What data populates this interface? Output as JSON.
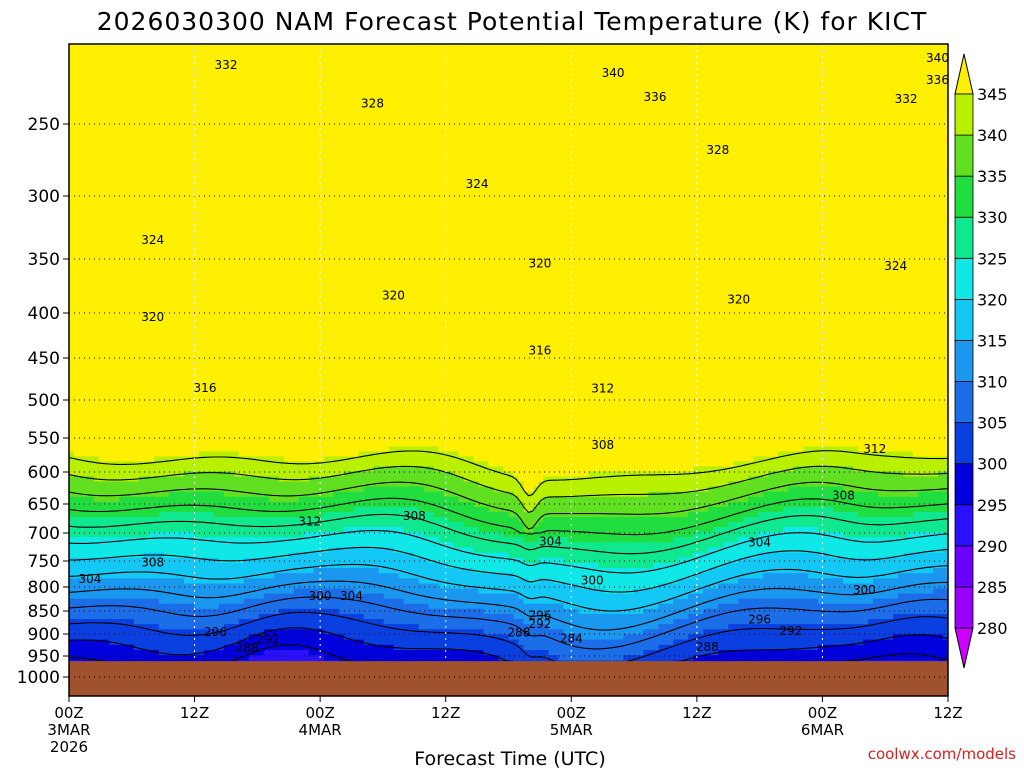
{
  "chart_data": {
    "type": "heatmap",
    "title": "2026030300 NAM Forecast Potential Temperature (K) for KICT",
    "xlabel": "Forecast Time (UTC)",
    "ylabel": "",
    "x_ticks": [
      {
        "hour": 0,
        "lines": [
          "00Z",
          "3MAR",
          "2026"
        ]
      },
      {
        "hour": 12,
        "lines": [
          "12Z"
        ]
      },
      {
        "hour": 24,
        "lines": [
          "00Z",
          "4MAR"
        ]
      },
      {
        "hour": 36,
        "lines": [
          "12Z"
        ]
      },
      {
        "hour": 48,
        "lines": [
          "00Z",
          "5MAR"
        ]
      },
      {
        "hour": 60,
        "lines": [
          "12Z"
        ]
      },
      {
        "hour": 72,
        "lines": [
          "00Z",
          "6MAR"
        ]
      },
      {
        "hour": 84,
        "lines": [
          "12Z"
        ]
      }
    ],
    "x_range_hours": [
      0,
      84
    ],
    "y_ticks_hpa": [
      250,
      300,
      350,
      400,
      450,
      500,
      550,
      600,
      650,
      700,
      750,
      800,
      850,
      900,
      950,
      1000
    ],
    "y_range_hpa": [
      200,
      1050
    ],
    "surface_pressure_hpa": 962,
    "colorbar": {
      "levels": [
        280,
        285,
        290,
        295,
        300,
        305,
        310,
        315,
        320,
        325,
        330,
        335,
        340,
        345
      ],
      "colors": [
        "#cc00ff",
        "#9900ff",
        "#6a00ff",
        "#2a10ff",
        "#0000dd",
        "#0a3fe0",
        "#1c6ee8",
        "#1a97ef",
        "#14c8f5",
        "#10e8e8",
        "#10e890",
        "#20dd40",
        "#60e020",
        "#b8f000",
        "#ffef00"
      ]
    },
    "contour_labels": [
      {
        "value": 340,
        "hour": 83,
        "hpa": 208
      },
      {
        "value": 340,
        "hour": 52,
        "hpa": 217
      },
      {
        "value": 336,
        "hour": 83,
        "hpa": 221
      },
      {
        "value": 336,
        "hour": 56,
        "hpa": 232
      },
      {
        "value": 332,
        "hour": 15,
        "hpa": 212
      },
      {
        "value": 332,
        "hour": 80,
        "hpa": 233
      },
      {
        "value": 328,
        "hour": 29,
        "hpa": 236
      },
      {
        "value": 328,
        "hour": 62,
        "hpa": 267
      },
      {
        "value": 324,
        "hour": 39,
        "hpa": 291
      },
      {
        "value": 324,
        "hour": 8,
        "hpa": 334
      },
      {
        "value": 324,
        "hour": 79,
        "hpa": 356
      },
      {
        "value": 320,
        "hour": 45,
        "hpa": 354
      },
      {
        "value": 320,
        "hour": 31,
        "hpa": 383
      },
      {
        "value": 320,
        "hour": 8,
        "hpa": 404
      },
      {
        "value": 320,
        "hour": 64,
        "hpa": 387
      },
      {
        "value": 316,
        "hour": 45,
        "hpa": 441
      },
      {
        "value": 316,
        "hour": 13,
        "hpa": 485
      },
      {
        "value": 312,
        "hour": 51,
        "hpa": 486
      },
      {
        "value": 312,
        "hour": 77,
        "hpa": 566
      },
      {
        "value": 312,
        "hour": 23,
        "hpa": 680
      },
      {
        "value": 308,
        "hour": 51,
        "hpa": 560
      },
      {
        "value": 308,
        "hour": 74,
        "hpa": 636
      },
      {
        "value": 308,
        "hour": 33,
        "hpa": 670
      },
      {
        "value": 308,
        "hour": 8,
        "hpa": 753
      },
      {
        "value": 304,
        "hour": 46,
        "hpa": 715
      },
      {
        "value": 304,
        "hour": 66,
        "hpa": 717
      },
      {
        "value": 304,
        "hour": 27,
        "hpa": 818
      },
      {
        "value": 304,
        "hour": 2,
        "hpa": 784
      },
      {
        "value": 300,
        "hour": 50,
        "hpa": 787
      },
      {
        "value": 300,
        "hour": 76,
        "hpa": 806
      },
      {
        "value": 300,
        "hour": 24,
        "hpa": 818
      },
      {
        "value": 296,
        "hour": 45,
        "hpa": 860
      },
      {
        "value": 296,
        "hour": 66,
        "hpa": 868
      },
      {
        "value": 296,
        "hour": 14,
        "hpa": 896
      },
      {
        "value": 292,
        "hour": 45,
        "hpa": 878
      },
      {
        "value": 292,
        "hour": 69,
        "hpa": 893
      },
      {
        "value": 292,
        "hour": 19,
        "hpa": 912
      },
      {
        "value": 288,
        "hour": 43,
        "hpa": 897
      },
      {
        "value": 288,
        "hour": 17,
        "hpa": 932
      },
      {
        "value": 288,
        "hour": 61,
        "hpa": 929
      },
      {
        "value": 284,
        "hour": 48,
        "hpa": 910
      }
    ]
  },
  "credit": "coolwx.com/models"
}
